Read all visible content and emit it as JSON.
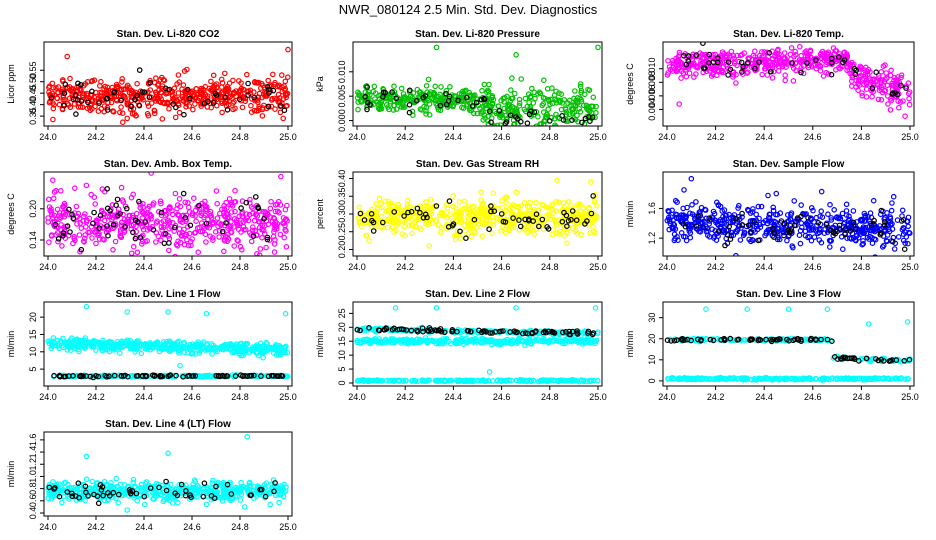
{
  "figure": {
    "title": "NWR_080124  2.5 Min. Std. Dev. Diagnostics",
    "colors": {
      "red": "#ff0000",
      "green": "#00c000",
      "magenta": "#ff00ff",
      "yellow": "#ffff00",
      "blue": "#0000ff",
      "cyan": "#00ffff",
      "overlay": "#000000"
    }
  },
  "chart_data": [
    {
      "type": "scatter",
      "title": "Stan. Dev. Li-820 CO2",
      "ylabel": "Licor ppm",
      "xlim": [
        24.0,
        25.0
      ],
      "ylim": [
        0.32,
        0.66
      ],
      "xticks": [
        "24.0",
        "24.2",
        "24.4",
        "24.6",
        "24.8",
        "25.0"
      ],
      "yticks": [
        "0.35",
        "0.40",
        "0.45",
        "0.50",
        "0.55"
      ],
      "yticks_values": [
        0.35,
        0.4,
        0.45,
        0.5,
        0.55
      ],
      "series": [
        {
          "color": "red",
          "count": 520,
          "segments": [
            {
              "x": [
                24.0,
                25.0
              ],
              "y": [
                0.44,
                0.44
              ],
              "sd": 0.038
            }
          ],
          "outliers": [
            [
              25.0,
              0.64
            ],
            [
              24.33,
              0.34
            ],
            [
              24.98,
              0.34
            ],
            [
              24.08,
              0.61
            ]
          ]
        },
        {
          "color": "overlay",
          "count": 55,
          "segments": [
            {
              "x": [
                24.0,
                25.0
              ],
              "y": [
                0.44,
                0.44
              ],
              "sd": 0.04
            }
          ]
        }
      ]
    },
    {
      "type": "scatter",
      "title": "Stan. Dev. Li-820 Pressure",
      "ylabel": "kPa",
      "xlim": [
        24.0,
        25.0
      ],
      "ylim": [
        -0.0005,
        0.0155
      ],
      "xticks": [
        "24.0",
        "24.2",
        "24.4",
        "24.6",
        "24.8",
        "25.0"
      ],
      "yticks": [
        "0.000",
        "0.005",
        "0.010"
      ],
      "yticks_values": [
        0.0,
        0.005,
        0.01
      ],
      "series": [
        {
          "color": "green",
          "count": 480,
          "segments": [
            {
              "x": [
                24.0,
                24.5
              ],
              "y": [
                0.0045,
                0.0042
              ],
              "sd": 0.0013
            },
            {
              "x": [
                24.5,
                25.0
              ],
              "y": [
                0.0025,
                0.0025
              ],
              "sd": 0.002
            }
          ],
          "outliers": [
            [
              24.33,
              0.015
            ],
            [
              24.66,
              0.0135
            ],
            [
              25.0,
              0.015
            ],
            [
              24.9,
              0.0005
            ]
          ]
        },
        {
          "color": "overlay",
          "count": 50,
          "segments": [
            {
              "x": [
                24.0,
                24.55
              ],
              "y": [
                0.0042,
                0.0042
              ],
              "sd": 0.0012
            },
            {
              "x": [
                24.55,
                25.0
              ],
              "y": [
                0.0005,
                0.0005
              ],
              "sd": 0.0008
            }
          ]
        }
      ]
    },
    {
      "type": "scatter",
      "title": "Stan. Dev. Li-820 Temp.",
      "ylabel": "degrees C",
      "xlim": [
        24.0,
        25.0
      ],
      "ylim": [
        0.002,
        0.0135
      ],
      "xticks": [
        "24.0",
        "24.2",
        "24.4",
        "24.6",
        "24.8",
        "25.0"
      ],
      "yticks": [
        "0.004",
        "0.006",
        "0.008",
        "0.010"
      ],
      "yticks_values": [
        0.004,
        0.006,
        0.008,
        0.01
      ],
      "series": [
        {
          "color": "magenta",
          "count": 520,
          "segments": [
            {
              "x": [
                24.0,
                24.3
              ],
              "y": [
                0.0105,
                0.0108
              ],
              "sd": 0.0011
            },
            {
              "x": [
                24.3,
                24.75
              ],
              "y": [
                0.0108,
                0.0115
              ],
              "sd": 0.0009
            },
            {
              "x": [
                24.75,
                25.0
              ],
              "y": [
                0.0095,
                0.0062
              ],
              "sd": 0.0012
            }
          ],
          "outliers": [
            [
              24.98,
              0.003
            ],
            [
              24.05,
              0.0048
            ],
            [
              24.52,
              0.0082
            ]
          ]
        },
        {
          "color": "overlay",
          "count": 45,
          "segments": [
            {
              "x": [
                24.0,
                24.75
              ],
              "y": [
                0.0108,
                0.0112
              ],
              "sd": 0.0009
            },
            {
              "x": [
                24.75,
                25.0
              ],
              "y": [
                0.0092,
                0.0065
              ],
              "sd": 0.001
            }
          ]
        }
      ]
    },
    {
      "type": "scatter",
      "title": "Stan. Dev. Amb. Box Temp.",
      "ylabel": "degrees C",
      "xlim": [
        24.0,
        25.0
      ],
      "ylim": [
        0.115,
        0.265
      ],
      "xticks": [
        "24.0",
        "24.2",
        "24.4",
        "24.6",
        "24.8",
        "25.0"
      ],
      "yticks": [
        "0.14",
        "0.20"
      ],
      "yticks_values": [
        0.14,
        0.2
      ],
      "series": [
        {
          "color": "magenta",
          "count": 520,
          "segments": [
            {
              "x": [
                24.0,
                25.0
              ],
              "y": [
                0.175,
                0.175
              ],
              "sd": 0.025
            }
          ],
          "outliers": [
            [
              24.97,
              0.262
            ],
            [
              24.02,
              0.255
            ],
            [
              24.16,
              0.245
            ]
          ]
        },
        {
          "color": "overlay",
          "count": 55,
          "segments": [
            {
              "x": [
                24.0,
                25.0
              ],
              "y": [
                0.17,
                0.17
              ],
              "sd": 0.025
            }
          ]
        }
      ]
    },
    {
      "type": "scatter",
      "title": "Stan. Dev. Gas Stream RH",
      "ylabel": "percent",
      "xlim": [
        24.0,
        25.0
      ],
      "ylim": [
        0.19,
        0.41
      ],
      "xticks": [
        "24.0",
        "24.2",
        "24.4",
        "24.6",
        "24.8",
        "25.0"
      ],
      "yticks": [
        "0.20",
        "0.25",
        "0.30",
        "0.35",
        "0.40"
      ],
      "yticks_values": [
        0.2,
        0.25,
        0.3,
        0.35,
        0.4
      ],
      "series": [
        {
          "color": "yellow",
          "count": 520,
          "segments": [
            {
              "x": [
                24.0,
                25.0
              ],
              "y": [
                0.29,
                0.29
              ],
              "sd": 0.025
            }
          ],
          "outliers": [
            [
              24.83,
              0.395
            ],
            [
              24.97,
              0.39
            ],
            [
              24.3,
              0.21
            ]
          ]
        },
        {
          "color": "overlay",
          "count": 55,
          "segments": [
            {
              "x": [
                24.0,
                25.0
              ],
              "y": [
                0.29,
                0.29
              ],
              "sd": 0.022
            }
          ]
        }
      ]
    },
    {
      "type": "scatter",
      "title": "Stan. Dev. Sample Flow",
      "ylabel": "ml/min",
      "xlim": [
        24.0,
        25.0
      ],
      "ylim": [
        1.0,
        2.05
      ],
      "xticks": [
        "24.0",
        "24.2",
        "24.4",
        "24.6",
        "24.8",
        "25.0"
      ],
      "yticks": [
        "1.2",
        "1.6"
      ],
      "yticks_values": [
        1.2,
        1.6
      ],
      "series": [
        {
          "color": "blue",
          "count": 520,
          "segments": [
            {
              "x": [
                24.0,
                25.0
              ],
              "y": [
                1.4,
                1.33
              ],
              "sd": 0.13
            }
          ],
          "outliers": [
            [
              24.1,
              2.0
            ],
            [
              24.07,
              1.85
            ],
            [
              24.45,
              1.8
            ]
          ]
        },
        {
          "color": "overlay",
          "count": 55,
          "segments": [
            {
              "x": [
                24.0,
                25.0
              ],
              "y": [
                1.38,
                1.33
              ],
              "sd": 0.11
            }
          ]
        }
      ]
    },
    {
      "type": "scatter",
      "title": "Stan. Dev. Line 1 Flow",
      "ylabel": "ml/min",
      "xlim": [
        24.0,
        25.0
      ],
      "ylim": [
        1.0,
        23.5
      ],
      "xticks": [
        "24.0",
        "24.2",
        "24.4",
        "24.6",
        "24.8",
        "25.0"
      ],
      "yticks": [
        "5",
        "10",
        "15",
        "20"
      ],
      "yticks_values": [
        5,
        10,
        15,
        20
      ],
      "series": [
        {
          "color": "cyan",
          "count": 480,
          "segments": [
            {
              "x": [
                24.0,
                25.0
              ],
              "y": [
                12.3,
                10.6
              ],
              "sd": 0.8
            }
          ],
          "outliers": [
            [
              24.16,
              23.0
            ],
            [
              24.33,
              21.5
            ],
            [
              24.5,
              21.5
            ],
            [
              24.66,
              21.0
            ],
            [
              24.99,
              21.0
            ],
            [
              24.55,
              6.0
            ]
          ]
        },
        {
          "color": "cyan",
          "count": 200,
          "segments": [
            {
              "x": [
                24.0,
                25.0
              ],
              "y": [
                3.0,
                3.0
              ],
              "sd": 0.12
            }
          ]
        },
        {
          "color": "overlay",
          "count": 85,
          "segments": [
            {
              "x": [
                24.0,
                25.0
              ],
              "y": [
                3.0,
                3.0
              ],
              "sd": 0.12
            }
          ]
        }
      ]
    },
    {
      "type": "scatter",
      "title": "Stan. Dev. Line 2 Flow",
      "ylabel": "ml/min",
      "xlim": [
        24.0,
        25.0
      ],
      "ylim": [
        0.0,
        28.0
      ],
      "xticks": [
        "24.0",
        "24.2",
        "24.4",
        "24.6",
        "24.8",
        "25.0"
      ],
      "yticks": [
        "0",
        "5",
        "10",
        "15",
        "20",
        "25"
      ],
      "yticks_values": [
        0,
        5,
        10,
        15,
        20,
        25
      ],
      "series": [
        {
          "color": "cyan",
          "count": 300,
          "segments": [
            {
              "x": [
                24.0,
                25.0
              ],
              "y": [
                15.0,
                15.0
              ],
              "sd": 0.45
            }
          ],
          "outliers": [
            [
              24.16,
              27.0
            ],
            [
              24.33,
              27.0
            ],
            [
              24.66,
              27.0
            ],
            [
              24.99,
              27.0
            ],
            [
              24.55,
              4.0
            ]
          ]
        },
        {
          "color": "cyan",
          "count": 200,
          "segments": [
            {
              "x": [
                24.0,
                25.0
              ],
              "y": [
                19.3,
                17.8
              ],
              "sd": 0.35
            }
          ]
        },
        {
          "color": "cyan",
          "count": 200,
          "segments": [
            {
              "x": [
                24.0,
                25.0
              ],
              "y": [
                0.8,
                0.8
              ],
              "sd": 0.15
            }
          ]
        },
        {
          "color": "overlay",
          "count": 85,
          "segments": [
            {
              "x": [
                24.0,
                25.0
              ],
              "y": [
                19.3,
                17.8
              ],
              "sd": 0.35
            }
          ]
        }
      ]
    },
    {
      "type": "scatter",
      "title": "Stan. Dev. Line 3 Flow",
      "ylabel": "ml/min",
      "xlim": [
        24.0,
        25.0
      ],
      "ylim": [
        -1.0,
        36.0
      ],
      "xticks": [
        "24.0",
        "24.2",
        "24.4",
        "24.6",
        "24.8",
        "25.0"
      ],
      "yticks": [
        "0",
        "10",
        "20",
        "30"
      ],
      "yticks_values": [
        0,
        10,
        20,
        30
      ],
      "series": [
        {
          "color": "cyan",
          "count": 150,
          "segments": [
            {
              "x": [
                24.0,
                24.68
              ],
              "y": [
                19.5,
                19.5
              ],
              "sd": 0.3
            },
            {
              "x": [
                24.68,
                25.0
              ],
              "y": [
                11.0,
                9.5
              ],
              "sd": 0.4
            }
          ],
          "outliers": [
            [
              24.16,
              34.0
            ],
            [
              24.33,
              34.0
            ],
            [
              24.5,
              34.0
            ],
            [
              24.66,
              34.0
            ],
            [
              24.83,
              27.0
            ],
            [
              24.99,
              28.0
            ]
          ]
        },
        {
          "color": "cyan",
          "count": 260,
          "segments": [
            {
              "x": [
                24.0,
                25.0
              ],
              "y": [
                1.0,
                1.0
              ],
              "sd": 0.2
            }
          ]
        },
        {
          "color": "overlay",
          "count": 80,
          "segments": [
            {
              "x": [
                24.0,
                24.68
              ],
              "y": [
                19.5,
                19.5
              ],
              "sd": 0.3
            },
            {
              "x": [
                24.68,
                25.0
              ],
              "y": [
                11.0,
                9.5
              ],
              "sd": 0.4
            }
          ]
        }
      ]
    },
    {
      "type": "scatter",
      "title": "Stan. Dev. Line 4 (LT) Flow",
      "ylabel": "ml/min",
      "xlim": [
        24.0,
        25.0
      ],
      "ylim": [
        0.4,
        1.68
      ],
      "xticks": [
        "24.0",
        "24.2",
        "24.4",
        "24.6",
        "24.8",
        "25.0"
      ],
      "yticks": [
        "0.4",
        "0.6",
        "0.8",
        "1.0",
        "1.2",
        "1.4",
        "1.6"
      ],
      "yticks_values": [
        0.4,
        0.6,
        0.8,
        1.0,
        1.2,
        1.4,
        1.6
      ],
      "series": [
        {
          "color": "cyan",
          "count": 500,
          "segments": [
            {
              "x": [
                24.0,
                25.0
              ],
              "y": [
                0.76,
                0.76
              ],
              "sd": 0.075
            }
          ],
          "outliers": [
            [
              24.83,
              1.65
            ],
            [
              24.16,
              1.33
            ],
            [
              24.5,
              1.38
            ],
            [
              24.33,
              0.45
            ],
            [
              24.82,
              0.5
            ]
          ]
        },
        {
          "color": "overlay",
          "count": 55,
          "segments": [
            {
              "x": [
                24.0,
                25.0
              ],
              "y": [
                0.75,
                0.75
              ],
              "sd": 0.07
            }
          ]
        }
      ]
    }
  ]
}
